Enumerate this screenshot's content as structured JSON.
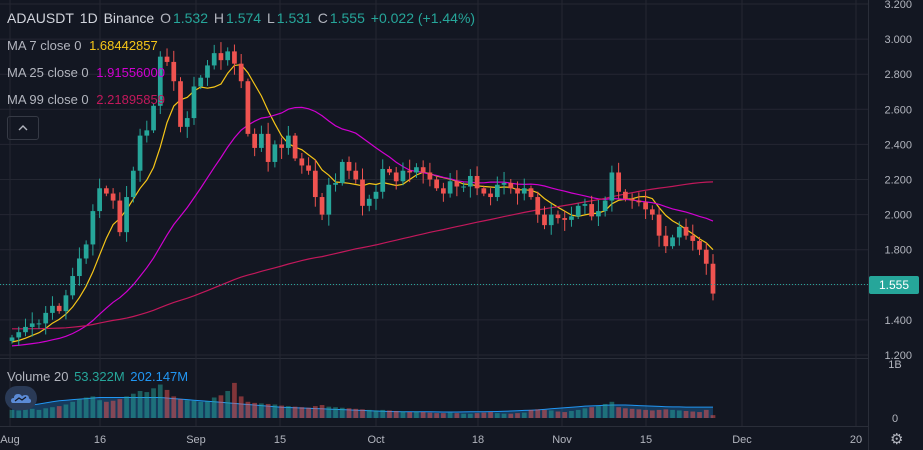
{
  "header": {
    "symbol": "ADAUSDT",
    "interval": "1D",
    "exchange": "Binance",
    "open_label": "O",
    "open": "1.532",
    "high_label": "H",
    "high": "1.574",
    "low_label": "L",
    "low": "1.531",
    "close_label": "C",
    "close": "1.555",
    "change": "+0.022 (+1.44%)"
  },
  "indicators": {
    "ma7": {
      "label": "MA 7 close 0",
      "value": "1.68442857",
      "color": "#f5c518"
    },
    "ma25": {
      "label": "MA 25 close 0",
      "value": "1.91556000",
      "color": "#d100d1"
    },
    "ma99": {
      "label": "MA 99 close 0",
      "value": "2.21895859",
      "color": "#c2185b"
    },
    "volume": {
      "label": "Volume 20",
      "value": "53.322M",
      "ma_value": "202.147M"
    }
  },
  "icons": {
    "collapse": "chevron-up-icon",
    "logo": "tradingview-cloud-icon",
    "settings": "gear-icon"
  },
  "colors": {
    "up": "#26a69a",
    "down": "#ef5350",
    "background": "#131722",
    "grid": "#242732",
    "price_badge": "#26a69a"
  },
  "chart_data": {
    "type": "candlestick",
    "series_name": "ADAUSDT",
    "y_ticks": [
      "3.200",
      "3.000",
      "2.800",
      "2.600",
      "2.400",
      "2.200",
      "2.000",
      "1.800",
      "1.600",
      "1.400",
      "1.200"
    ],
    "ylim": [
      1.2,
      3.2
    ],
    "x_ticks": [
      {
        "label": "Aug",
        "date": "2021-08-01"
      },
      {
        "label": "16",
        "date": "2021-08-16"
      },
      {
        "label": "Sep",
        "date": "2021-09-01"
      },
      {
        "label": "15",
        "date": "2021-09-15"
      },
      {
        "label": "Oct",
        "date": "2021-10-01"
      },
      {
        "label": "18",
        "date": "2021-10-18"
      },
      {
        "label": "Nov",
        "date": "2021-11-01"
      },
      {
        "label": "15",
        "date": "2021-11-15"
      },
      {
        "label": "Dec",
        "date": "2021-12-01"
      },
      {
        "label": "20",
        "date": "2021-12-20"
      }
    ],
    "last_price": "1.555",
    "volume_ticks": [
      "1B",
      "0"
    ],
    "volume_ylim": [
      0,
      1000
    ],
    "closes": [
      1.3,
      1.33,
      1.36,
      1.38,
      1.38,
      1.44,
      1.48,
      1.45,
      1.54,
      1.65,
      1.75,
      1.83,
      2.02,
      2.15,
      2.12,
      2.08,
      1.9,
      2.1,
      2.25,
      2.45,
      2.48,
      2.62,
      2.9,
      2.87,
      2.76,
      2.5,
      2.55,
      2.73,
      2.78,
      2.85,
      2.92,
      2.88,
      2.93,
      2.86,
      2.76,
      2.46,
      2.38,
      2.46,
      2.3,
      2.4,
      2.38,
      2.45,
      2.32,
      2.28,
      2.25,
      2.1,
      2.0,
      2.17,
      2.18,
      2.3,
      2.25,
      2.2,
      2.05,
      2.09,
      2.13,
      2.26,
      2.24,
      2.19,
      2.25,
      2.24,
      2.27,
      2.24,
      2.2,
      2.15,
      2.12,
      2.19,
      2.16,
      2.16,
      2.22,
      2.15,
      2.12,
      2.1,
      2.17,
      2.18,
      2.15,
      2.12,
      2.15,
      2.1,
      2.0,
      1.94,
      2.0,
      1.98,
      1.97,
      1.99,
      2.05,
      2.06,
      1.99,
      2.02,
      2.08,
      2.24,
      2.13,
      2.09,
      2.08,
      2.07,
      2.03,
      2.0,
      1.88,
      1.82,
      1.87,
      1.93,
      1.88,
      1.85,
      1.8,
      1.72,
      1.55
    ],
    "volumes_m": [
      150,
      140,
      160,
      170,
      150,
      180,
      200,
      220,
      250,
      300,
      350,
      380,
      400,
      330,
      300,
      320,
      350,
      400,
      450,
      500,
      480,
      550,
      620,
      520,
      400,
      350,
      330,
      320,
      300,
      310,
      380,
      420,
      500,
      650,
      400,
      300,
      280,
      270,
      260,
      250,
      230,
      220,
      210,
      200,
      190,
      220,
      240,
      210,
      200,
      190,
      180,
      170,
      160,
      150,
      140,
      150,
      140,
      130,
      120,
      110,
      120,
      110,
      100,
      90,
      90,
      100,
      90,
      80,
      80,
      90,
      100,
      110,
      90,
      80,
      80,
      90,
      100,
      150,
      160,
      150,
      140,
      120,
      110,
      130,
      150,
      180,
      200,
      220,
      260,
      300,
      200,
      180,
      170,
      160,
      150,
      140,
      150,
      160,
      150,
      140,
      130,
      120,
      110,
      150,
      53
    ],
    "ma25_volume_m": [
      200,
      210,
      220,
      240,
      260,
      280,
      300,
      320,
      330,
      340,
      350,
      360,
      370,
      380,
      380,
      380,
      380,
      380,
      380,
      380,
      380,
      380,
      380,
      370,
      360,
      350,
      340,
      330,
      320,
      310,
      300,
      290,
      280,
      270,
      260,
      250,
      240,
      230,
      220,
      210,
      200,
      195,
      190,
      185,
      180,
      175,
      170,
      165,
      160,
      155,
      150,
      145,
      140,
      135,
      130,
      125,
      120,
      118,
      116,
      115,
      115,
      114,
      114,
      113,
      112,
      112,
      112,
      113,
      114,
      115,
      116,
      118,
      120,
      125,
      130,
      135,
      140,
      145,
      150,
      160,
      170,
      180,
      190,
      200,
      210,
      220,
      225,
      230,
      235,
      240,
      240,
      240,
      235,
      230,
      225,
      220,
      215,
      210,
      205,
      205,
      202,
      202,
      202,
      202,
      202
    ]
  }
}
